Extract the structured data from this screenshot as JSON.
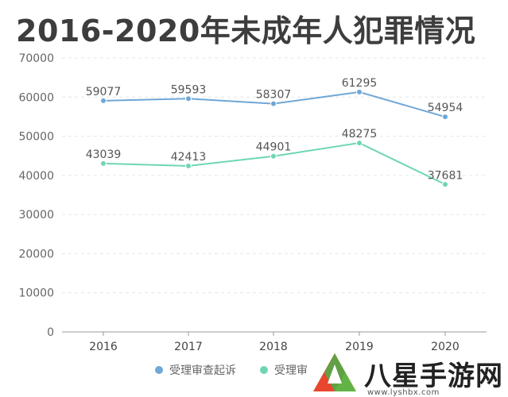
{
  "title": "2016-2020年未成年人犯罪情况",
  "chart_data": {
    "type": "line",
    "categories": [
      "2016",
      "2017",
      "2018",
      "2019",
      "2020"
    ],
    "series": [
      {
        "name": "受理审查起诉",
        "values": [
          59077,
          59593,
          58307,
          61295,
          54954
        ],
        "color": "#6fa7d6"
      },
      {
        "name": "受理审",
        "values": [
          43039,
          42413,
          44901,
          48275,
          37681
        ],
        "color": "#6fd6b4"
      }
    ],
    "yticks": [
      0,
      10000,
      20000,
      30000,
      40000,
      50000,
      60000,
      70000
    ],
    "ylim": [
      0,
      70000
    ],
    "grid": true,
    "legend_position": "bottom"
  },
  "watermark": {
    "text": "八星手游网",
    "url": "www.lyshbx.com"
  }
}
